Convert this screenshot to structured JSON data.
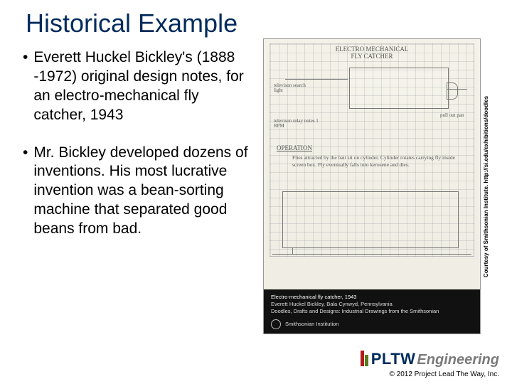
{
  "title": "Historical Example",
  "bullets": [
    "Everett Huckel Bickley's (1888 -1972) original design notes, for an electro-mechanical fly catcher, 1943",
    "Mr. Bickley developed dozens of inventions. His most lucrative invention was a bean-sorting machine that separated good beans from bad."
  ],
  "sketch": {
    "heading": "ELECTRO MECHANICAL\nFLY CATCHER",
    "note_left_top": "televison search light",
    "note_right": "pull out pan",
    "note_left_mid": "televison relay notes 1 RPM",
    "operation_label": "OPERATION",
    "operation_text": "Flies attracted by the bait sit on cylinder. Cylinder rotates carrying fly inside screen box. Fly eventually falls into kerosene and dies."
  },
  "caption": {
    "line1": "Electro-mechanical fly catcher, 1943",
    "line2": "Everett Huckel Bickley, Bala Cynwyd, Pennsylvania",
    "line3": "Doodles, Drafts and Designs: Industrial Drawings from the Smithsonian",
    "org": "Smithsonian Institution"
  },
  "credit_vertical": "Courtesy of Smithsonian Institute. http://si.edu/exhibitions/doodles",
  "logo": {
    "brand": "PLTW",
    "suffix": "Engineering"
  },
  "copyright": "© 2012 Project Lead The Way, Inc.",
  "colors": {
    "title": "#002b5c",
    "accent_red": "#b31b1b",
    "accent_green": "#5a7a1a",
    "eng_gray": "#7a7a7a"
  }
}
